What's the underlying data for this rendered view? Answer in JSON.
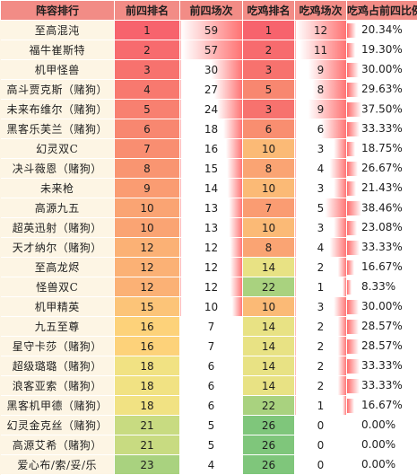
{
  "headers": [
    "阵容排行",
    "前四排名",
    "前四场次",
    "吃鸡排名",
    "吃鸡场次",
    "吃鸡占前四比例"
  ],
  "rows": [
    {
      "name": "至高混沌",
      "top4_rank": "1",
      "top4_games": "59",
      "win_rank": "1",
      "win_games": "12",
      "win_ratio": "20.34%",
      "c_rank": "#f7636d",
      "c_games": "#ffffff",
      "c_winrank": "#f7636d",
      "c_wingames": "#f7636d",
      "r_games": 1.0,
      "r_wingames": 1.0,
      "r_ratio": 0.54
    },
    {
      "name": "福牛崔斯特",
      "top4_rank": "2",
      "top4_games": "57",
      "win_rank": "2",
      "win_games": "11",
      "win_ratio": "19.30%",
      "c_rank": "#f76b6e",
      "c_games": "#ffffff",
      "c_winrank": "#f76b6e",
      "c_wingames": "#f76b6e",
      "r_games": 0.97,
      "r_wingames": 0.92,
      "r_ratio": 0.51
    },
    {
      "name": "机甲怪兽",
      "top4_rank": "3",
      "top4_games": "30",
      "win_rank": "3",
      "win_games": "9",
      "win_ratio": "30.00%",
      "c_rank": "#f7726e",
      "c_games": "#ffffff",
      "c_winrank": "#f7726e",
      "c_wingames": "#f88770",
      "r_games": 0.51,
      "r_wingames": 0.75,
      "r_ratio": 0.8
    },
    {
      "name": "高斗贾克斯（赌狗）",
      "top4_rank": "4",
      "top4_games": "27",
      "win_rank": "5",
      "win_games": "8",
      "win_ratio": "29.63%",
      "c_rank": "#f8796f",
      "c_games": "#ffffff",
      "c_winrank": "#f88770",
      "c_wingames": "#f99571",
      "r_games": 0.46,
      "r_wingames": 0.67,
      "r_ratio": 0.79
    },
    {
      "name": "未来布维尔（赌狗）",
      "top4_rank": "5",
      "top4_games": "24",
      "win_rank": "3",
      "win_games": "9",
      "win_ratio": "37.50%",
      "c_rank": "#f88070",
      "c_games": "#ffffff",
      "c_winrank": "#f7726e",
      "c_wingames": "#f88770",
      "r_games": 0.41,
      "r_wingames": 0.75,
      "r_ratio": 0.98
    },
    {
      "name": "黑客乐芙兰（赌狗）",
      "top4_rank": "6",
      "top4_games": "18",
      "win_rank": "6",
      "win_games": "6",
      "win_ratio": "33.33%",
      "c_rank": "#f88770",
      "c_games": "#ffffff",
      "c_winrank": "#f98e70",
      "c_wingames": "#faaf74",
      "r_games": 0.31,
      "r_wingames": 0.5,
      "r_ratio": 0.89
    },
    {
      "name": "幻灵双C",
      "top4_rank": "7",
      "top4_games": "16",
      "win_rank": "10",
      "win_games": "3",
      "win_ratio": "18.75%",
      "c_rank": "#f98e71",
      "c_games": "#ffffff",
      "c_winrank": "#fbba76",
      "c_wingames": "#fcd27a",
      "r_games": 0.27,
      "r_wingames": 0.25,
      "r_ratio": 0.5
    },
    {
      "name": "决斗薇恩（赌狗）",
      "top4_rank": "8",
      "top4_games": "15",
      "win_rank": "8",
      "win_games": "4",
      "win_ratio": "26.67%",
      "c_rank": "#f99571",
      "c_games": "#ffffff",
      "c_winrank": "#faa473",
      "c_wingames": "#fbc677",
      "r_games": 0.25,
      "r_wingames": 0.33,
      "r_ratio": 0.71
    },
    {
      "name": "未来枪",
      "top4_rank": "9",
      "top4_games": "14",
      "win_rank": "10",
      "win_games": "3",
      "win_ratio": "21.43%",
      "c_rank": "#fa9c72",
      "c_games": "#ffffff",
      "c_winrank": "#fbba76",
      "c_wingames": "#fcd27a",
      "r_games": 0.24,
      "r_wingames": 0.25,
      "r_ratio": 0.57
    },
    {
      "name": "高源九五",
      "top4_rank": "10",
      "top4_games": "13",
      "win_rank": "7",
      "win_games": "5",
      "win_ratio": "38.46%",
      "c_rank": "#faa473",
      "c_games": "#ffffff",
      "c_winrank": "#fa9c72",
      "c_wingames": "#fbba76",
      "r_games": 0.22,
      "r_wingames": 0.42,
      "r_ratio": 1.0
    },
    {
      "name": "超英迅射（赌狗）",
      "top4_rank": "10",
      "top4_games": "13",
      "win_rank": "10",
      "win_games": "3",
      "win_ratio": "23.08%",
      "c_rank": "#faa473",
      "c_games": "#ffffff",
      "c_winrank": "#fbba76",
      "c_wingames": "#fcd27a",
      "r_games": 0.22,
      "r_wingames": 0.25,
      "r_ratio": 0.61
    },
    {
      "name": "天才纳尔（赌狗）",
      "top4_rank": "12",
      "top4_games": "12",
      "win_rank": "8",
      "win_games": "4",
      "win_ratio": "33.33%",
      "c_rank": "#fbb175",
      "c_games": "#ffffff",
      "c_winrank": "#faa473",
      "c_wingames": "#fbc677",
      "r_games": 0.2,
      "r_wingames": 0.33,
      "r_ratio": 0.89
    },
    {
      "name": "至高龙烬",
      "top4_rank": "12",
      "top4_games": "12",
      "win_rank": "14",
      "win_games": "2",
      "win_ratio": "16.67%",
      "c_rank": "#fbb175",
      "c_games": "#ffffff",
      "c_winrank": "#e8e284",
      "c_wingames": "#fddc7c",
      "r_games": 0.2,
      "r_wingames": 0.17,
      "r_ratio": 0.45
    },
    {
      "name": "怪兽双C",
      "top4_rank": "12",
      "top4_games": "12",
      "win_rank": "22",
      "win_games": "1",
      "win_ratio": "8.33%",
      "c_rank": "#fbb175",
      "c_games": "#ffffff",
      "c_winrank": "#a9d27f",
      "c_wingames": "#fee57e",
      "r_games": 0.2,
      "r_wingames": 0.08,
      "r_ratio": 0.22
    },
    {
      "name": "机甲精英",
      "top4_rank": "15",
      "top4_games": "10",
      "win_rank": "10",
      "win_games": "3",
      "win_ratio": "30.00%",
      "c_rank": "#fcc478",
      "c_games": "#ffffff",
      "c_winrank": "#fbba76",
      "c_wingames": "#fcd27a",
      "r_games": 0.17,
      "r_wingames": 0.25,
      "r_ratio": 0.8
    },
    {
      "name": "九五至尊",
      "top4_rank": "16",
      "top4_games": "7",
      "win_rank": "14",
      "win_games": "2",
      "win_ratio": "28.57%",
      "c_rank": "#fdd27a",
      "c_games": "#ffffff",
      "c_winrank": "#e8e284",
      "c_wingames": "#fddc7c",
      "r_games": 0.12,
      "r_wingames": 0.17,
      "r_ratio": 0.76
    },
    {
      "name": "星守卡莎（赌狗）",
      "top4_rank": "16",
      "top4_games": "7",
      "win_rank": "14",
      "win_games": "2",
      "win_ratio": "28.57%",
      "c_rank": "#fdd27a",
      "c_games": "#ffffff",
      "c_winrank": "#e8e284",
      "c_wingames": "#fddc7c",
      "r_games": 0.12,
      "r_wingames": 0.17,
      "r_ratio": 0.76
    },
    {
      "name": "超级璐璐（赌狗）",
      "top4_rank": "18",
      "top4_games": "6",
      "win_rank": "14",
      "win_games": "2",
      "win_ratio": "33.33%",
      "c_rank": "#f1e283",
      "c_games": "#ffffff",
      "c_winrank": "#e8e284",
      "c_wingames": "#fddc7c",
      "r_games": 0.1,
      "r_wingames": 0.17,
      "r_ratio": 0.89
    },
    {
      "name": "浪客亚索（赌狗）",
      "top4_rank": "18",
      "top4_games": "6",
      "win_rank": "14",
      "win_games": "2",
      "win_ratio": "33.33%",
      "c_rank": "#f1e283",
      "c_games": "#ffffff",
      "c_winrank": "#e8e284",
      "c_wingames": "#fddc7c",
      "r_games": 0.1,
      "r_wingames": 0.17,
      "r_ratio": 0.89
    },
    {
      "name": "黑客机甲德（赌狗）",
      "top4_rank": "18",
      "top4_games": "6",
      "win_rank": "22",
      "win_games": "1",
      "win_ratio": "16.67%",
      "c_rank": "#f1e283",
      "c_games": "#ffffff",
      "c_winrank": "#a9d27f",
      "c_wingames": "#fee57e",
      "r_games": 0.1,
      "r_wingames": 0.08,
      "r_ratio": 0.45
    },
    {
      "name": "幻灵金克丝（赌狗）",
      "top4_rank": "21",
      "top4_games": "5",
      "win_rank": "26",
      "win_games": "0",
      "win_ratio": "0.00%",
      "c_rank": "#c8db81",
      "c_games": "#ffffff",
      "c_winrank": "#7fc67b",
      "c_wingames": "#ffffff",
      "r_games": 0.08,
      "r_wingames": 0.0,
      "r_ratio": 0.0
    },
    {
      "name": "高源艾希（赌狗）",
      "top4_rank": "21",
      "top4_games": "5",
      "win_rank": "26",
      "win_games": "0",
      "win_ratio": "0.00%",
      "c_rank": "#c8db81",
      "c_games": "#ffffff",
      "c_winrank": "#7fc67b",
      "c_wingames": "#ffffff",
      "r_games": 0.08,
      "r_wingames": 0.0,
      "r_ratio": 0.0
    },
    {
      "name": "爱心布/索/妥/乐",
      "top4_rank": "23",
      "top4_games": "4",
      "win_rank": "26",
      "win_games": "0",
      "win_ratio": "0.00%",
      "c_rank": "#a9d27f",
      "c_games": "#ffffff",
      "c_winrank": "#7fc67b",
      "c_wingames": "#ffffff",
      "r_games": 0.07,
      "r_wingames": 0.0,
      "r_ratio": 0.0
    }
  ],
  "colors": {
    "header_bg": "#f28c86",
    "page_bg": "#fdf5e4",
    "bar_color": "#ff6b6b"
  }
}
